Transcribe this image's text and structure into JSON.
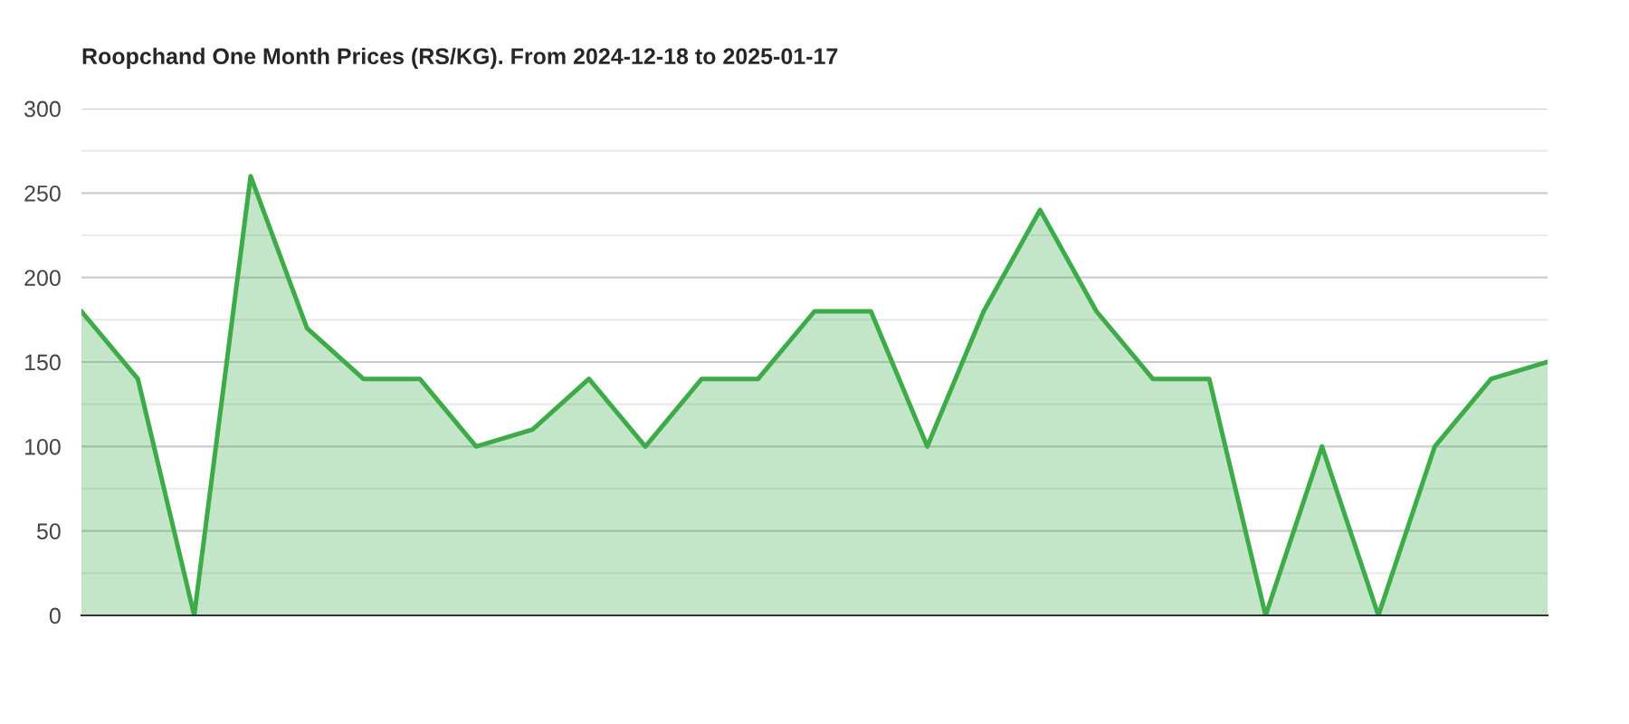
{
  "chart_data": {
    "type": "area",
    "title": "Roopchand One Month Prices (RS/KG). From 2024-12-18 to 2025-01-17",
    "categories": [
      null,
      null,
      null,
      null,
      null,
      null,
      null,
      null,
      null,
      null,
      null,
      null,
      null,
      null,
      null,
      null,
      null,
      null,
      null,
      null,
      null,
      null,
      null,
      null,
      null,
      null,
      null
    ],
    "series": [
      {
        "color": "#3cab48",
        "values": [
          180,
          140,
          0,
          260,
          170,
          140,
          140,
          100,
          110,
          140,
          100,
          140,
          140,
          180,
          180,
          100,
          180,
          240,
          180,
          140,
          140,
          0,
          100,
          0,
          100,
          140,
          150
        ]
      }
    ],
    "ylim": [
      0,
      300
    ],
    "yticks": [
      0,
      {
        "value": 25,
        "label": null
      },
      50,
      {
        "value": 75,
        "label": null
      },
      100,
      {
        "value": 125,
        "label": null
      },
      150,
      {
        "value": 175,
        "label": null
      },
      200,
      {
        "value": 225,
        "label": null
      },
      250,
      {
        "value": 275,
        "label": null
      },
      300
    ],
    "grid": "y",
    "legend": false
  }
}
